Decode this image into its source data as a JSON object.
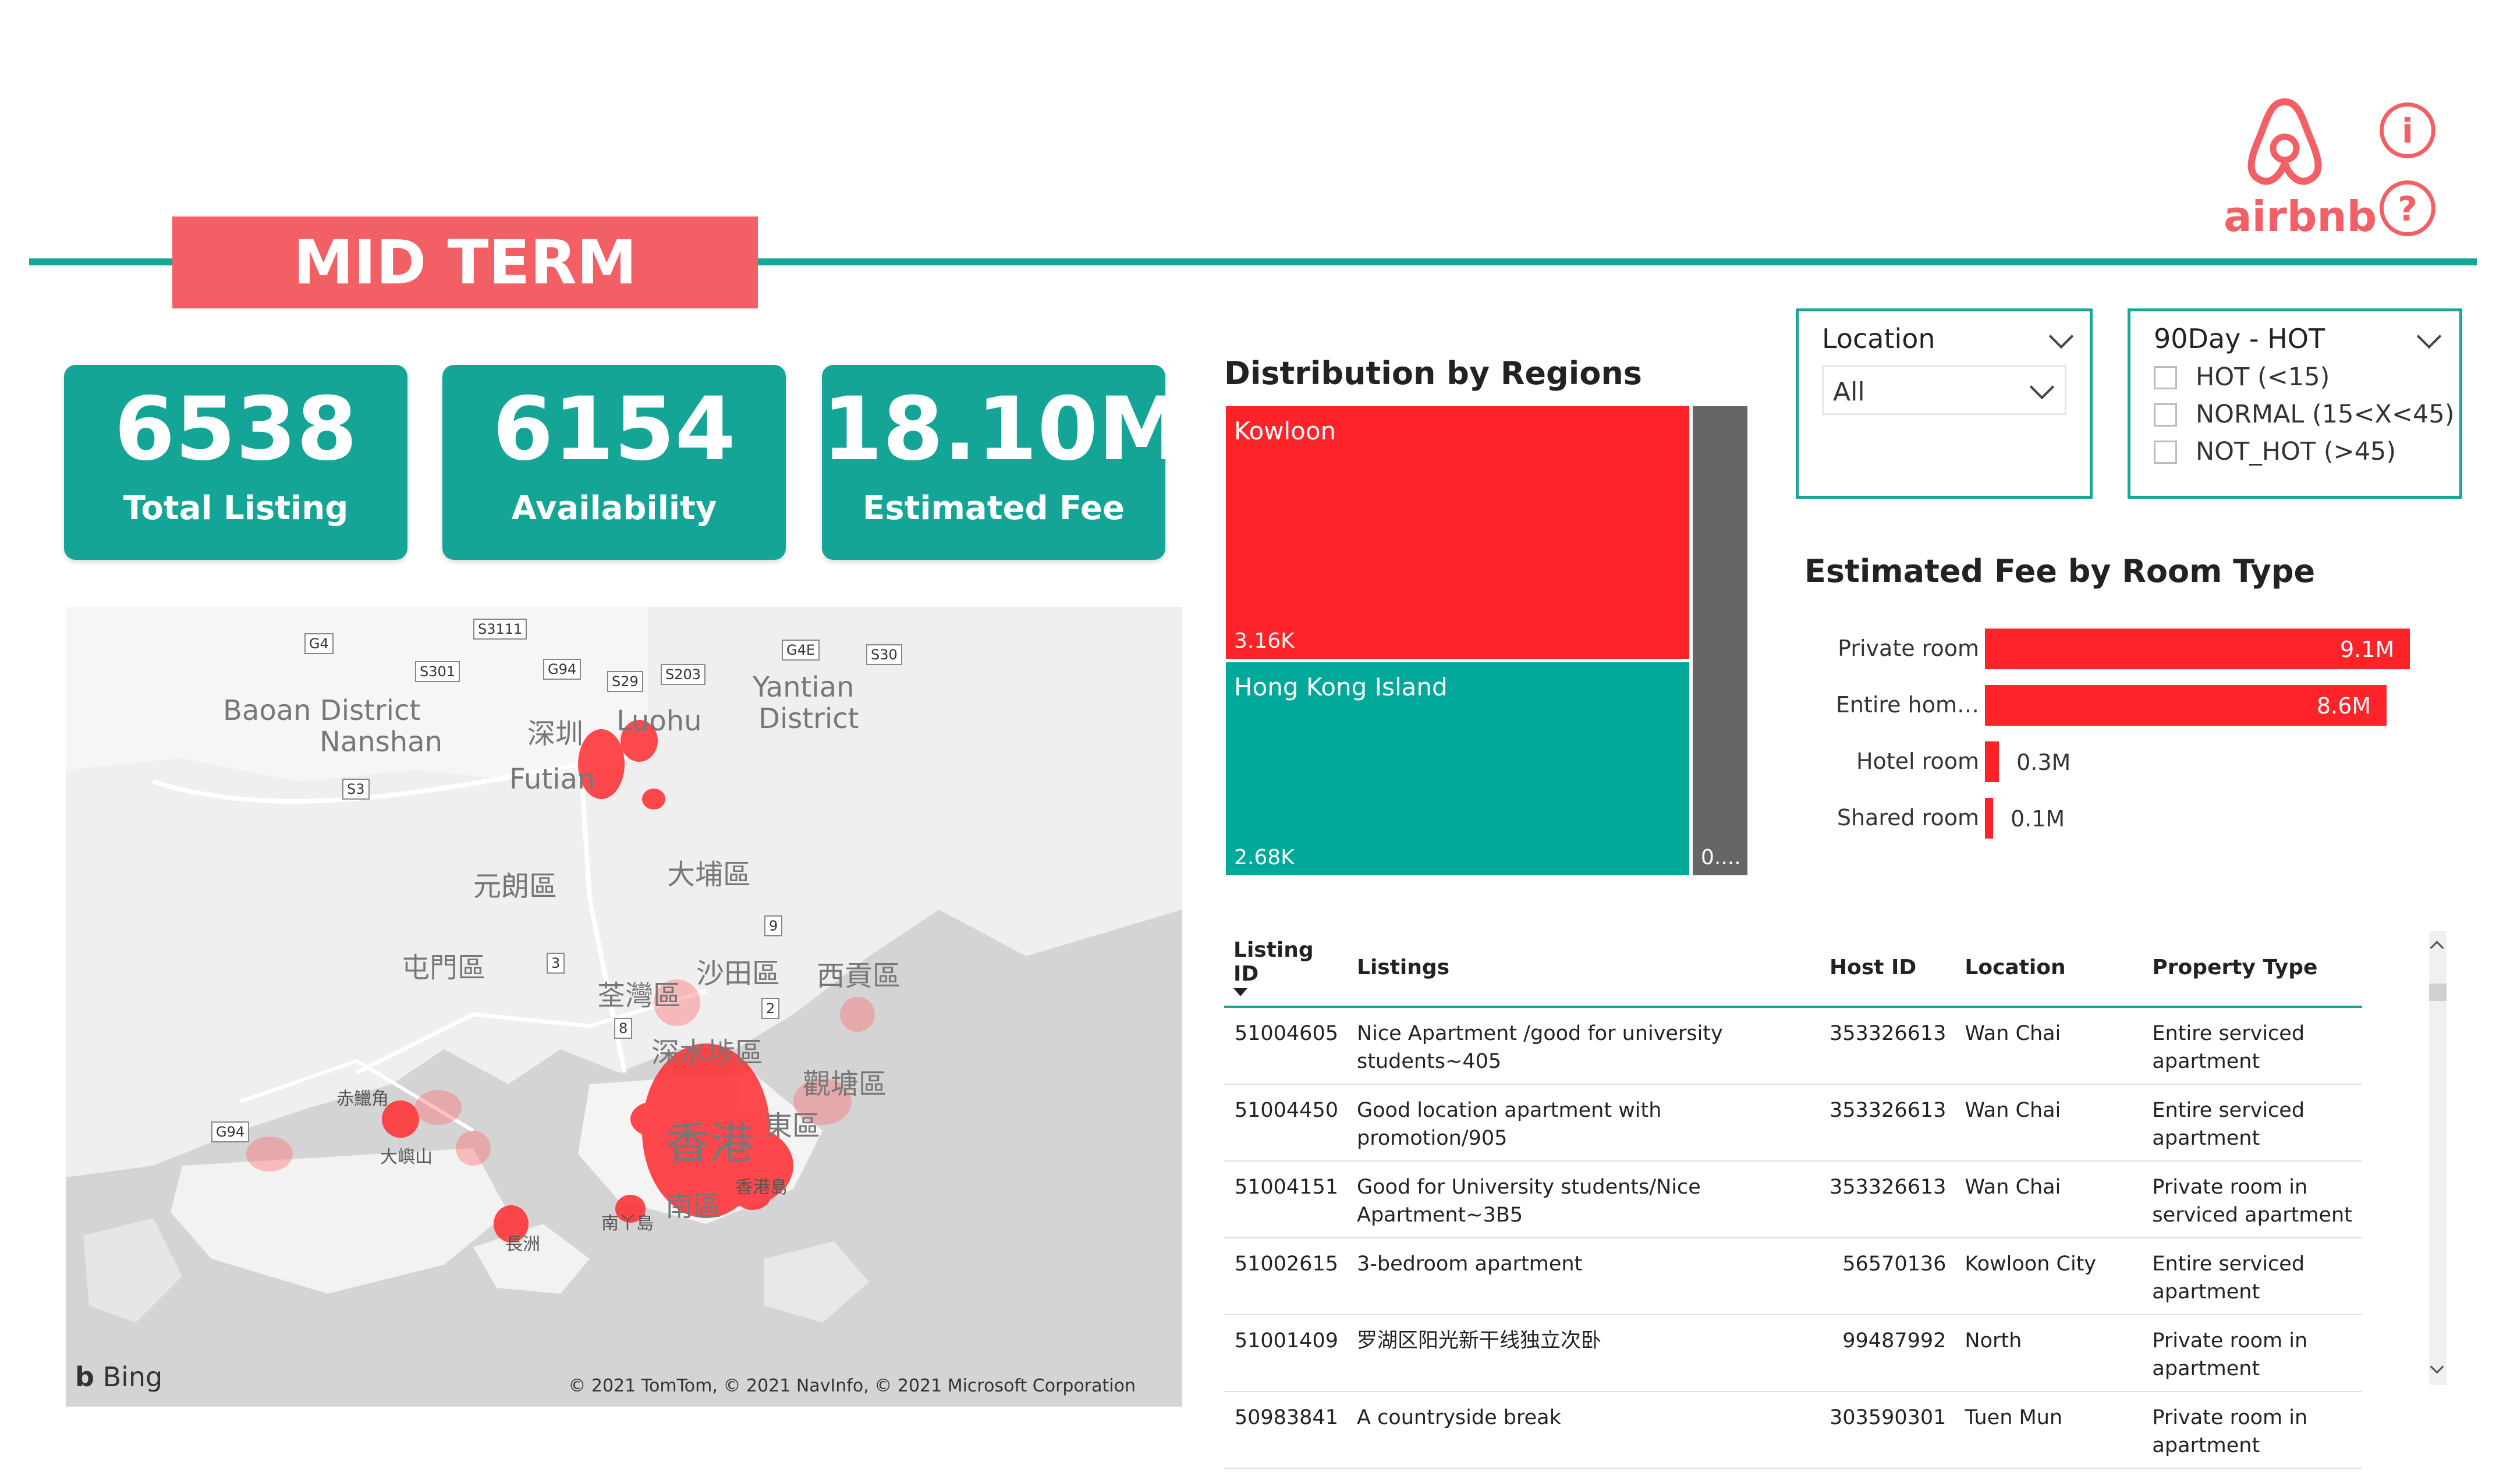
{
  "header": {
    "banner_title": "MID TERM",
    "brand_name": "airbnb",
    "brand_icon": "airbnb-logo-icon",
    "info_icon": "info-icon",
    "help_icon": "help-icon",
    "info_glyph": "i",
    "help_glyph": "?",
    "accent_color": "#16a596",
    "brand_color": "#f26065"
  },
  "kpis": [
    {
      "value": "6538",
      "label": "Total Listing"
    },
    {
      "value": "6154",
      "label": "Availability"
    },
    {
      "value": "18.10M",
      "label": "Estimated Fee"
    }
  ],
  "map": {
    "labels": {
      "baoan": "Baoan District",
      "nanshan": "Nanshan",
      "futian": "Futian",
      "shenzhen": "深圳",
      "luohu": "Luohu",
      "yantian": "Yantian",
      "district": "District",
      "yuenlong": "元朗區",
      "taipo": "大埔區",
      "tuenmun": "屯門區",
      "shatin": "沙田區",
      "saikung": "西貢區",
      "tsuenwan": "荃灣區",
      "shamshuipo": "深水埗區",
      "kwuntong": "觀塘區",
      "hongkong": "香港",
      "eastern": "東區",
      "southern": "南區",
      "chekLapKok": "赤鱲角",
      "taiyueshan": "大嶼山",
      "cheungchau": "長洲",
      "hkisland": "香港島",
      "lamma": "南丫島"
    },
    "road_labels": [
      "G4",
      "S3111",
      "S301",
      "G94",
      "S29",
      "S203",
      "G4E",
      "S30",
      "S3",
      "9",
      "3",
      "2",
      "8",
      "G94"
    ],
    "attribution": "© 2021 TomTom, © 2021 NavInfo, © 2021 Microsoft Corporation",
    "provider": "Bing"
  },
  "treemap": {
    "title": "Distribution by Regions",
    "regions": [
      {
        "name": "Kowloon",
        "value_label": "3.16K",
        "color": "#fd2329"
      },
      {
        "name": "Hong Kong Island",
        "value_label": "2.68K",
        "color": "#00a99a"
      },
      {
        "name": "",
        "value_label": "0....",
        "color": "#666666"
      }
    ]
  },
  "slicers": {
    "location": {
      "title": "Location",
      "selected": "All"
    },
    "hotness": {
      "title": "90Day - HOT",
      "options": [
        "HOT (<15)",
        "NORMAL (15<X<45)",
        "NOT_HOT (>45)"
      ]
    }
  },
  "chart_data": {
    "type": "bar",
    "orientation": "horizontal",
    "title": "Estimated Fee by Room Type",
    "categories": [
      "Private room",
      "Entire hom…",
      "Hotel room",
      "Shared room"
    ],
    "values": [
      9.1,
      8.6,
      0.3,
      0.1
    ],
    "value_labels": [
      "9.1M",
      "8.6M",
      "0.3M",
      "0.1M"
    ],
    "unit": "M",
    "xlim": [
      0,
      9.1
    ],
    "color": "#fd2329",
    "grid": false
  },
  "table": {
    "columns": [
      "Listing ID",
      "Listings",
      "Host ID",
      "Location",
      "Property Type"
    ],
    "rows": [
      [
        "51004605",
        "Nice Apartment /good for university students~405",
        "353326613",
        "Wan Chai",
        "Entire serviced apartment"
      ],
      [
        "51004450",
        "Good location apartment with promotion/905",
        "353326613",
        "Wan Chai",
        "Entire serviced apartment"
      ],
      [
        "51004151",
        "Good for University students/Nice Apartment~3B5",
        "353326613",
        "Wan Chai",
        "Private room in serviced apartment"
      ],
      [
        "51002615",
        "3-bedroom apartment",
        "56570136",
        "Kowloon City",
        "Entire serviced apartment"
      ],
      [
        "51001409",
        "罗湖区阳光新干线独立次卧",
        "99487992",
        "North",
        "Private room in apartment"
      ],
      [
        "50983841",
        "A countryside break",
        "303590301",
        "Tuen Mun",
        "Private room in apartment"
      ]
    ]
  }
}
